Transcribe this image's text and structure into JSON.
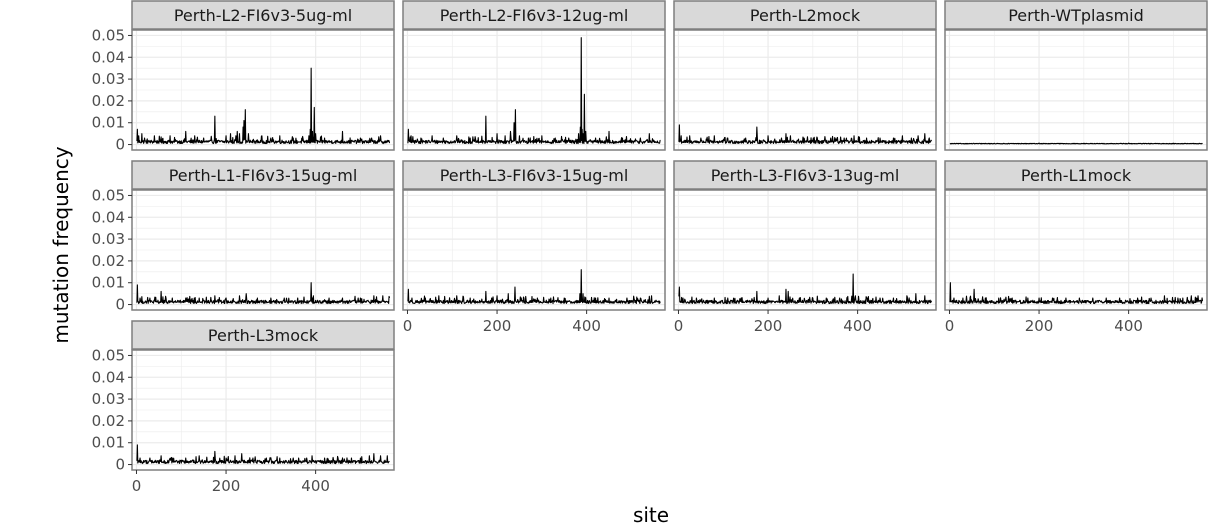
{
  "chart_data": {
    "type": "line",
    "xlabel": "site",
    "ylabel": "mutation frequency",
    "xlim": [
      -10,
      575
    ],
    "ylim": [
      -0.0025,
      0.0525
    ],
    "x_ticks": [
      0,
      200,
      400
    ],
    "y_ticks": [
      0,
      0.01,
      0.02,
      0.03,
      0.04,
      0.05
    ],
    "y_tick_labels": [
      "0",
      "0.01",
      "0.02",
      "0.03",
      "0.04",
      "0.05"
    ],
    "site_range": [
      1,
      565
    ],
    "grid": true,
    "line_color": "#000000",
    "panel_background": "#ffffff",
    "strip_background": "#d9d9d9",
    "panel_border_color": "#7f7f7f",
    "grid_color": "#ebebeb",
    "facets": [
      {
        "name": "Perth-L2-FI6v3-5ug-ml",
        "baseline": 0.0015,
        "peaks": [
          [
            2,
            0.007
          ],
          [
            5,
            0.004
          ],
          [
            12,
            0.005
          ],
          [
            18,
            0.003
          ],
          [
            40,
            0.004
          ],
          [
            55,
            0.0035
          ],
          [
            75,
            0.004
          ],
          [
            110,
            0.006
          ],
          [
            130,
            0.004
          ],
          [
            150,
            0.003
          ],
          [
            175,
            0.013
          ],
          [
            200,
            0.004
          ],
          [
            210,
            0.005
          ],
          [
            222,
            0.004
          ],
          [
            225,
            0.006
          ],
          [
            230,
            0.005
          ],
          [
            238,
            0.008
          ],
          [
            240,
            0.011
          ],
          [
            243,
            0.016
          ],
          [
            250,
            0.005
          ],
          [
            280,
            0.004
          ],
          [
            300,
            0.003
          ],
          [
            320,
            0.004
          ],
          [
            350,
            0.003
          ],
          [
            385,
            0.004
          ],
          [
            388,
            0.007
          ],
          [
            390,
            0.035
          ],
          [
            393,
            0.006
          ],
          [
            397,
            0.017
          ],
          [
            400,
            0.005
          ],
          [
            420,
            0.003
          ],
          [
            460,
            0.006
          ],
          [
            500,
            0.003
          ],
          [
            525,
            0.003
          ],
          [
            545,
            0.004
          ]
        ]
      },
      {
        "name": "Perth-L2-FI6v3-12ug-ml",
        "baseline": 0.0015,
        "peaks": [
          [
            2,
            0.007
          ],
          [
            8,
            0.004
          ],
          [
            30,
            0.003
          ],
          [
            55,
            0.004
          ],
          [
            80,
            0.003
          ],
          [
            110,
            0.004
          ],
          [
            140,
            0.003
          ],
          [
            175,
            0.013
          ],
          [
            200,
            0.005
          ],
          [
            218,
            0.004
          ],
          [
            230,
            0.006
          ],
          [
            238,
            0.01
          ],
          [
            241,
            0.016
          ],
          [
            250,
            0.004
          ],
          [
            270,
            0.003
          ],
          [
            300,
            0.004
          ],
          [
            330,
            0.003
          ],
          [
            360,
            0.003
          ],
          [
            382,
            0.005
          ],
          [
            386,
            0.008
          ],
          [
            388,
            0.049
          ],
          [
            390,
            0.007
          ],
          [
            392,
            0.005
          ],
          [
            395,
            0.023
          ],
          [
            398,
            0.006
          ],
          [
            420,
            0.003
          ],
          [
            450,
            0.006
          ],
          [
            480,
            0.003
          ],
          [
            520,
            0.003
          ],
          [
            540,
            0.005
          ]
        ]
      },
      {
        "name": "Perth-L2mock",
        "baseline": 0.0015,
        "peaks": [
          [
            2,
            0.009
          ],
          [
            6,
            0.004
          ],
          [
            25,
            0.004
          ],
          [
            50,
            0.003
          ],
          [
            80,
            0.004
          ],
          [
            110,
            0.003
          ],
          [
            150,
            0.003
          ],
          [
            175,
            0.008
          ],
          [
            200,
            0.004
          ],
          [
            230,
            0.003
          ],
          [
            240,
            0.005
          ],
          [
            250,
            0.004
          ],
          [
            280,
            0.003
          ],
          [
            310,
            0.003
          ],
          [
            340,
            0.003
          ],
          [
            370,
            0.003
          ],
          [
            392,
            0.004
          ],
          [
            420,
            0.003
          ],
          [
            450,
            0.003
          ],
          [
            480,
            0.003
          ],
          [
            500,
            0.004
          ],
          [
            520,
            0.003
          ],
          [
            535,
            0.004
          ],
          [
            550,
            0.005
          ],
          [
            560,
            0.003
          ]
        ]
      },
      {
        "name": "Perth-WTplasmid",
        "baseline": 0.0003,
        "peaks": [
          [
            100,
            0.0006
          ],
          [
            200,
            0.0007
          ],
          [
            300,
            0.0006
          ],
          [
            400,
            0.0007
          ],
          [
            500,
            0.0006
          ]
        ]
      },
      {
        "name": "Perth-L1-FI6v3-15ug-ml",
        "baseline": 0.0015,
        "peaks": [
          [
            2,
            0.009
          ],
          [
            8,
            0.003
          ],
          [
            30,
            0.003
          ],
          [
            55,
            0.006
          ],
          [
            80,
            0.003
          ],
          [
            110,
            0.003
          ],
          [
            140,
            0.003
          ],
          [
            175,
            0.004
          ],
          [
            200,
            0.003
          ],
          [
            230,
            0.004
          ],
          [
            245,
            0.005
          ],
          [
            270,
            0.003
          ],
          [
            300,
            0.003
          ],
          [
            330,
            0.003
          ],
          [
            360,
            0.003
          ],
          [
            390,
            0.01
          ],
          [
            395,
            0.004
          ],
          [
            430,
            0.003
          ],
          [
            460,
            0.003
          ],
          [
            500,
            0.003
          ],
          [
            530,
            0.004
          ],
          [
            550,
            0.004
          ]
        ]
      },
      {
        "name": "Perth-L3-FI6v3-15ug-ml",
        "baseline": 0.0015,
        "peaks": [
          [
            2,
            0.007
          ],
          [
            10,
            0.003
          ],
          [
            40,
            0.003
          ],
          [
            70,
            0.004
          ],
          [
            110,
            0.004
          ],
          [
            140,
            0.003
          ],
          [
            175,
            0.006
          ],
          [
            200,
            0.004
          ],
          [
            225,
            0.005
          ],
          [
            240,
            0.008
          ],
          [
            260,
            0.003
          ],
          [
            290,
            0.003
          ],
          [
            320,
            0.003
          ],
          [
            350,
            0.003
          ],
          [
            385,
            0.005
          ],
          [
            388,
            0.016
          ],
          [
            392,
            0.005
          ],
          [
            420,
            0.003
          ],
          [
            450,
            0.003
          ],
          [
            490,
            0.003
          ],
          [
            520,
            0.003
          ],
          [
            545,
            0.004
          ]
        ]
      },
      {
        "name": "Perth-L3-FI6v3-13ug-ml",
        "baseline": 0.0015,
        "peaks": [
          [
            2,
            0.008
          ],
          [
            10,
            0.003
          ],
          [
            40,
            0.003
          ],
          [
            80,
            0.003
          ],
          [
            110,
            0.003
          ],
          [
            140,
            0.003
          ],
          [
            175,
            0.006
          ],
          [
            200,
            0.003
          ],
          [
            225,
            0.004
          ],
          [
            240,
            0.007
          ],
          [
            245,
            0.006
          ],
          [
            270,
            0.003
          ],
          [
            300,
            0.003
          ],
          [
            330,
            0.003
          ],
          [
            360,
            0.003
          ],
          [
            390,
            0.014
          ],
          [
            395,
            0.004
          ],
          [
            420,
            0.003
          ],
          [
            450,
            0.003
          ],
          [
            480,
            0.003
          ],
          [
            510,
            0.004
          ],
          [
            530,
            0.005
          ],
          [
            550,
            0.004
          ]
        ]
      },
      {
        "name": "Perth-L1mock",
        "baseline": 0.0015,
        "peaks": [
          [
            2,
            0.01
          ],
          [
            10,
            0.003
          ],
          [
            30,
            0.003
          ],
          [
            55,
            0.007
          ],
          [
            80,
            0.003
          ],
          [
            110,
            0.003
          ],
          [
            140,
            0.003
          ],
          [
            175,
            0.003
          ],
          [
            200,
            0.003
          ],
          [
            230,
            0.003
          ],
          [
            260,
            0.003
          ],
          [
            290,
            0.003
          ],
          [
            320,
            0.003
          ],
          [
            350,
            0.003
          ],
          [
            380,
            0.003
          ],
          [
            420,
            0.003
          ],
          [
            450,
            0.003
          ],
          [
            480,
            0.004
          ],
          [
            510,
            0.003
          ],
          [
            540,
            0.004
          ],
          [
            555,
            0.004
          ]
        ]
      },
      {
        "name": "Perth-L3mock",
        "baseline": 0.0015,
        "peaks": [
          [
            2,
            0.009
          ],
          [
            8,
            0.003
          ],
          [
            30,
            0.003
          ],
          [
            55,
            0.004
          ],
          [
            80,
            0.003
          ],
          [
            110,
            0.003
          ],
          [
            140,
            0.004
          ],
          [
            175,
            0.006
          ],
          [
            200,
            0.003
          ],
          [
            220,
            0.004
          ],
          [
            235,
            0.005
          ],
          [
            260,
            0.003
          ],
          [
            290,
            0.003
          ],
          [
            320,
            0.003
          ],
          [
            350,
            0.003
          ],
          [
            380,
            0.003
          ],
          [
            392,
            0.004
          ],
          [
            420,
            0.003
          ],
          [
            450,
            0.003
          ],
          [
            480,
            0.003
          ],
          [
            500,
            0.003
          ],
          [
            520,
            0.004
          ],
          [
            530,
            0.005
          ],
          [
            545,
            0.004
          ],
          [
            560,
            0.004
          ]
        ]
      }
    ]
  }
}
